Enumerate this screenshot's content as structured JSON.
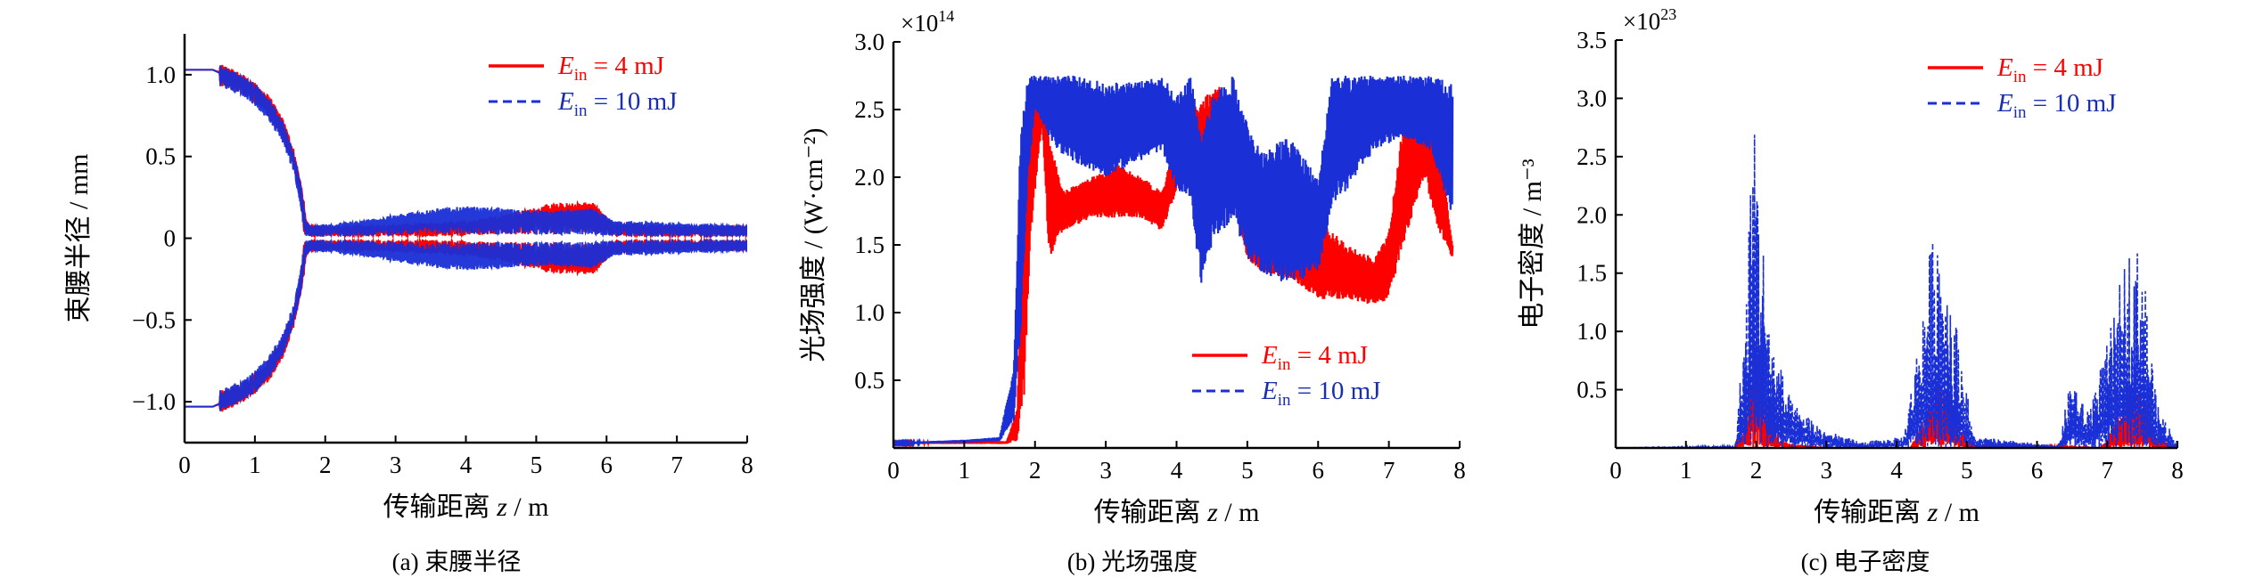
{
  "colors": {
    "series_4mJ": "#ff0000",
    "series_10mJ": "#1a2fd6",
    "axis": "#000000",
    "legend_text_4mJ": "#ff0000",
    "legend_text_10mJ": "#1a2fb0"
  },
  "chart_data": [
    {
      "type": "line",
      "caption": "(a) 束腰半径",
      "xlabel_prefix": "传输距离 ",
      "xlabel_var": "z",
      "xlabel_suffix": " / m",
      "ylabel": "束腰半径 / mm",
      "xlim": [
        0,
        8
      ],
      "ylim": [
        -1.25,
        1.25
      ],
      "xticks": [
        0,
        1,
        2,
        3,
        4,
        5,
        6,
        7,
        8
      ],
      "yticks": [
        -1.0,
        -0.5,
        0,
        0.5,
        1.0
      ],
      "ytick_labels": [
        "−1.0",
        "−0.5",
        "0",
        "0.5",
        "1.0"
      ],
      "legend": [
        {
          "var": "E",
          "sub": "in",
          "text": " = 4 mJ",
          "style": "solid"
        },
        {
          "var": "E",
          "sub": "in",
          "text": " = 10 mJ",
          "style": "dashed"
        }
      ],
      "legend_position": "top-right",
      "series": [
        {
          "style": "solid",
          "symmetric": true,
          "noise": 0.05,
          "x": [
            0,
            0.4,
            0.6,
            0.8,
            1.0,
            1.2,
            1.4,
            1.55,
            1.65,
            1.72,
            1.8,
            2.5,
            3.5,
            4.0,
            4.6,
            5.2,
            5.8,
            6.1,
            7.0,
            8.0
          ],
          "y": [
            1.03,
            1.03,
            1.0,
            0.96,
            0.9,
            0.82,
            0.68,
            0.5,
            0.3,
            0.08,
            0.05,
            0.05,
            0.06,
            0.07,
            0.1,
            0.14,
            0.15,
            0.06,
            0.05,
            0.05
          ]
        },
        {
          "style": "dashed",
          "symmetric": true,
          "noise": 0.05,
          "x": [
            0,
            0.4,
            0.6,
            0.8,
            1.0,
            1.2,
            1.4,
            1.55,
            1.65,
            1.72,
            1.8,
            2.5,
            3.5,
            4.0,
            4.6,
            5.2,
            5.8,
            6.1,
            7.0,
            8.0
          ],
          "y": [
            1.03,
            1.03,
            0.99,
            0.95,
            0.89,
            0.8,
            0.66,
            0.48,
            0.28,
            0.07,
            0.05,
            0.07,
            0.12,
            0.13,
            0.12,
            0.11,
            0.12,
            0.07,
            0.06,
            0.05
          ]
        }
      ]
    },
    {
      "type": "line",
      "caption": "(b) 光场强度",
      "xlabel_prefix": "传输距离 ",
      "xlabel_var": "z",
      "xlabel_suffix": " / m",
      "ylabel": "光场强度 / (W·cm⁻²)",
      "multiplier_base": "×10",
      "multiplier_exp": "14",
      "xlim": [
        0,
        8
      ],
      "ylim": [
        0,
        3.0
      ],
      "xticks": [
        0,
        1,
        2,
        3,
        4,
        5,
        6,
        7,
        8
      ],
      "yticks": [
        0.5,
        1.0,
        1.5,
        2.0,
        2.5,
        3.0
      ],
      "ytick_labels": [
        "0.5",
        "1.0",
        "1.5",
        "2.0",
        "2.5",
        "3.0"
      ],
      "legend": [
        {
          "var": "E",
          "sub": "in",
          "text": " = 4 mJ",
          "style": "solid"
        },
        {
          "var": "E",
          "sub": "in",
          "text": " = 10 mJ",
          "style": "dashed"
        }
      ],
      "legend_position": "bottom-right",
      "series": [
        {
          "style": "solid",
          "fill": true,
          "x": [
            0,
            1.0,
            1.6,
            1.75,
            1.85,
            1.95,
            2.1,
            2.2,
            2.4,
            2.8,
            3.2,
            3.5,
            3.8,
            4.0,
            4.2,
            4.4,
            4.6,
            4.8,
            5.0,
            5.2,
            5.6,
            6.0,
            6.4,
            6.8,
            7.0,
            7.2,
            7.5,
            7.7,
            7.9
          ],
          "lo": [
            0.03,
            0.03,
            0.03,
            0.05,
            0.4,
            1.6,
            2.4,
            1.4,
            1.6,
            1.7,
            1.7,
            1.7,
            1.6,
            1.9,
            2.0,
            1.8,
            2.2,
            1.8,
            1.4,
            1.3,
            1.25,
            1.1,
            1.1,
            1.05,
            1.1,
            1.5,
            2.0,
            1.6,
            1.4
          ],
          "hi": [
            0.04,
            0.05,
            0.05,
            0.3,
            2.4,
            2.7,
            2.7,
            2.3,
            1.9,
            2.0,
            2.1,
            2.0,
            1.9,
            2.3,
            2.5,
            2.6,
            2.7,
            2.5,
            1.6,
            1.5,
            1.5,
            1.7,
            1.5,
            1.4,
            1.6,
            2.4,
            2.65,
            2.3,
            1.5
          ]
        },
        {
          "style": "dashed",
          "fill": true,
          "x": [
            0,
            1.0,
            1.5,
            1.7,
            1.8,
            1.9,
            2.0,
            2.3,
            2.6,
            3.0,
            3.4,
            3.8,
            4.0,
            4.2,
            4.35,
            4.5,
            4.8,
            5.0,
            5.2,
            5.6,
            6.0,
            6.2,
            6.4,
            6.8,
            7.2,
            7.6,
            7.9
          ],
          "lo": [
            0.03,
            0.04,
            0.05,
            0.2,
            0.9,
            2.0,
            2.5,
            2.2,
            2.1,
            2.0,
            2.1,
            2.2,
            1.9,
            1.8,
            1.2,
            1.5,
            1.7,
            1.4,
            1.3,
            1.2,
            1.3,
            1.8,
            1.9,
            2.2,
            2.3,
            2.2,
            1.7
          ],
          "hi": [
            0.04,
            0.06,
            0.08,
            0.6,
            2.4,
            2.75,
            2.75,
            2.75,
            2.75,
            2.7,
            2.7,
            2.75,
            2.6,
            2.75,
            2.3,
            2.6,
            2.75,
            2.4,
            2.2,
            2.3,
            2.0,
            2.75,
            2.75,
            2.75,
            2.75,
            2.75,
            2.7
          ]
        }
      ]
    },
    {
      "type": "line",
      "caption": "(c) 电子密度",
      "xlabel_prefix": "传输距离 ",
      "xlabel_var": "z",
      "xlabel_suffix": " / m",
      "ylabel": "电子密度 / m⁻³",
      "multiplier_base": "×10",
      "multiplier_exp": "23",
      "xlim": [
        0,
        8
      ],
      "ylim": [
        0,
        3.5
      ],
      "xticks": [
        0,
        1,
        2,
        3,
        4,
        5,
        6,
        7,
        8
      ],
      "yticks": [
        0.5,
        1.0,
        1.5,
        2.0,
        2.5,
        3.0,
        3.5
      ],
      "ytick_labels": [
        "0.5",
        "1.0",
        "1.5",
        "2.0",
        "2.5",
        "3.0",
        "3.5"
      ],
      "legend": [
        {
          "var": "E",
          "sub": "in",
          "text": " = 4 mJ",
          "style": "solid"
        },
        {
          "var": "E",
          "sub": "in",
          "text": " = 10 mJ",
          "style": "dashed"
        }
      ],
      "legend_position": "top-right",
      "series": [
        {
          "style": "solid",
          "spiky": true,
          "x": [
            0,
            1.7,
            1.85,
            1.95,
            2.05,
            2.2,
            2.4,
            3.0,
            4.2,
            4.4,
            4.6,
            4.8,
            5.0,
            6.9,
            7.1,
            7.3,
            7.5,
            7.7,
            8.0
          ],
          "y": [
            0,
            0,
            0.3,
            1.0,
            0.8,
            0.3,
            0.05,
            0,
            0,
            0.3,
            0.65,
            0.4,
            0.05,
            0,
            0.2,
            0.6,
            0.5,
            0.1,
            0
          ]
        },
        {
          "style": "dashed",
          "spiky": true,
          "x": [
            0,
            1.7,
            1.85,
            1.95,
            2.05,
            2.2,
            2.5,
            3.0,
            3.5,
            4.1,
            4.3,
            4.55,
            4.7,
            4.9,
            5.1,
            6.3,
            6.5,
            6.7,
            7.0,
            7.3,
            7.5,
            7.7,
            8.0
          ],
          "y": [
            0,
            0.02,
            1.2,
            3.02,
            2.2,
            1.0,
            0.4,
            0.15,
            0.05,
            0.1,
            0.9,
            2.05,
            1.6,
            0.9,
            0.1,
            0.02,
            0.65,
            0.3,
            0.9,
            1.75,
            1.7,
            0.4,
            0.05
          ]
        }
      ]
    }
  ]
}
